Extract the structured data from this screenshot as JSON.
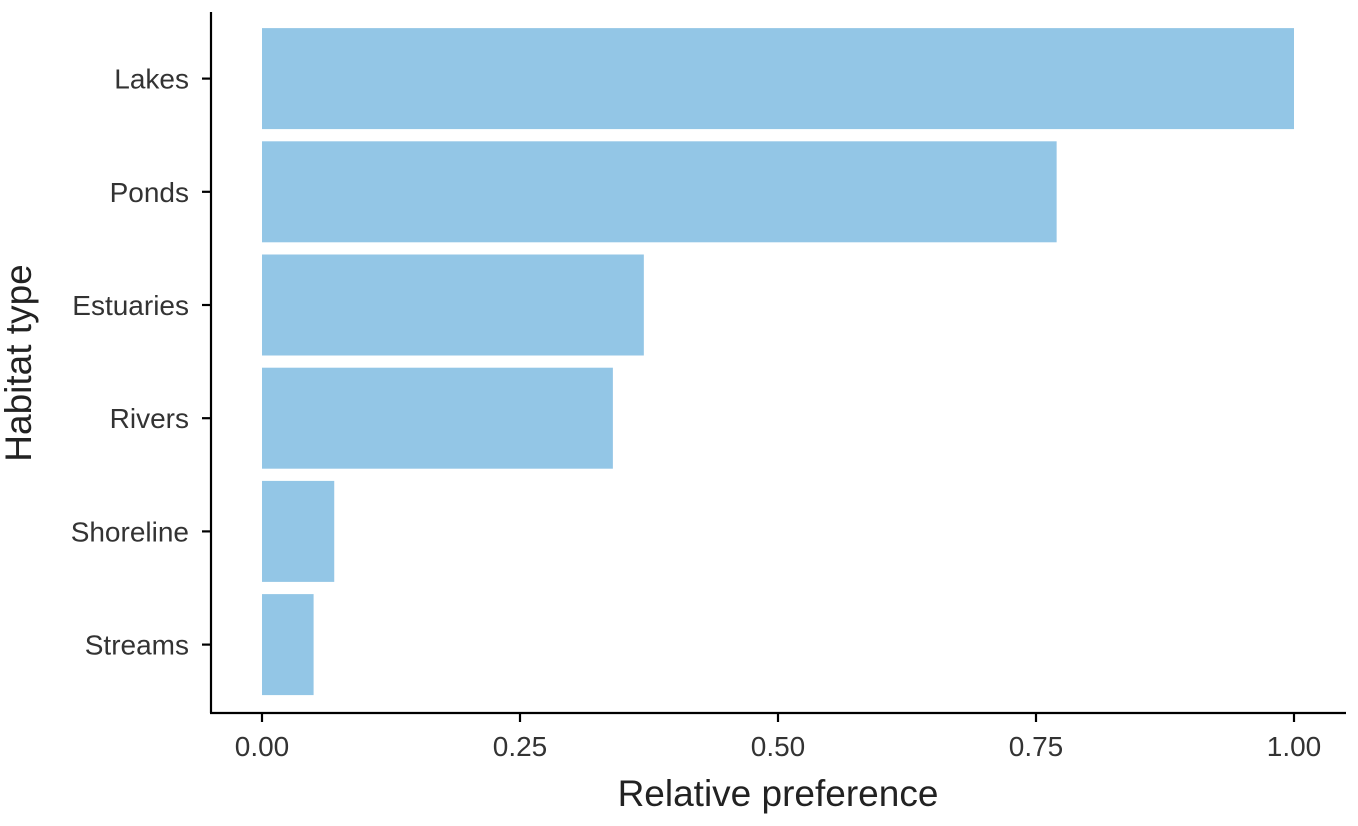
{
  "chart_data": {
    "type": "bar",
    "orientation": "horizontal",
    "categories": [
      "Lakes",
      "Ponds",
      "Estuaries",
      "Rivers",
      "Shoreline",
      "Streams"
    ],
    "values": [
      1.0,
      0.77,
      0.37,
      0.34,
      0.07,
      0.05
    ],
    "xlabel": "Relative preference",
    "ylabel": "Habitat type",
    "xlim": [
      0,
      1.0
    ],
    "xticks": [
      0,
      0.25,
      0.5,
      0.75,
      1.0
    ],
    "xtick_labels": [
      "0.00",
      "0.25",
      "0.50",
      "0.75",
      "1.00"
    ],
    "bar_color": "#93C6E6",
    "grid": false,
    "legend": "none"
  }
}
